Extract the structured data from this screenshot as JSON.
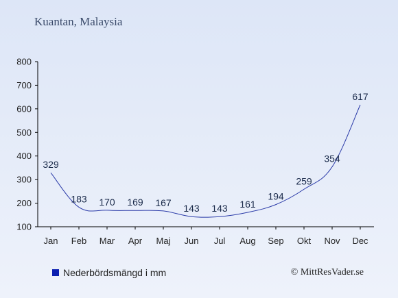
{
  "title": "Kuantan, Malaysia",
  "legend": {
    "label": "Nederbördsmängd i mm",
    "color": "#0b1fb0"
  },
  "credit": "© MittResVader.se",
  "chart_data": {
    "type": "line",
    "categories": [
      "Jan",
      "Feb",
      "Mar",
      "Apr",
      "Maj",
      "Jun",
      "Jul",
      "Aug",
      "Sep",
      "Okt",
      "Nov",
      "Dec"
    ],
    "series": [
      {
        "name": "Nederbördsmängd i mm",
        "values": [
          329,
          183,
          170,
          169,
          167,
          143,
          143,
          161,
          194,
          259,
          354,
          617
        ],
        "color": "#2a3aa8"
      }
    ],
    "yticks": [
      100,
      200,
      300,
      400,
      500,
      600,
      700,
      800
    ],
    "ylim": [
      100,
      800
    ],
    "grid": false,
    "legend_position": "bottom-left"
  }
}
